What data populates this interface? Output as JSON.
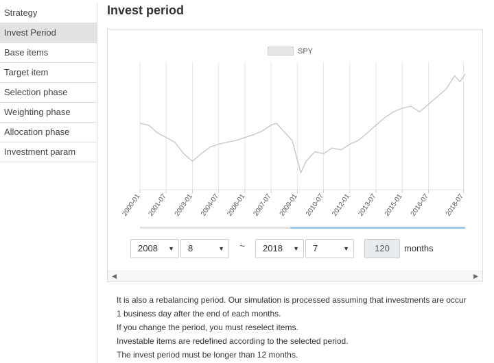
{
  "sidebar": {
    "items": [
      {
        "label": "Strategy",
        "active": false
      },
      {
        "label": "Invest Period",
        "active": true
      },
      {
        "label": "Base items",
        "active": false
      },
      {
        "label": "Target item",
        "active": false
      },
      {
        "label": "Selection phase",
        "active": false
      },
      {
        "label": "Weighting phase",
        "active": false
      },
      {
        "label": "Allocation phase",
        "active": false
      },
      {
        "label": "Investment param",
        "active": false
      }
    ]
  },
  "main": {
    "title": "Invest period",
    "period": {
      "start_year": "2008",
      "start_month": "8",
      "separator": "~",
      "end_year": "2018",
      "end_month": "7",
      "months_value": "120",
      "months_label": "months"
    },
    "notes": [
      "It is also a rebalancing period. Our simulation is processed assuming that investments are occur",
      "1 business day after the end of each months.",
      "If you change the period, you must reselect items.",
      "Investable items are redefined according to the selected period.",
      "The invest period must be longer than 12 months."
    ]
  },
  "chart_data": {
    "type": "line",
    "legend": "top",
    "grid": true,
    "series": [
      {
        "name": "SPY",
        "color": "#c8c8c8",
        "x": [
          2000.0,
          2000.5,
          2001.0,
          2001.5,
          2002.0,
          2002.5,
          2003.0,
          2003.5,
          2004.0,
          2004.5,
          2005.0,
          2005.5,
          2006.0,
          2006.5,
          2007.0,
          2007.5,
          2007.8,
          2008.3,
          2008.7,
          2009.2,
          2009.5,
          2010.0,
          2010.5,
          2011.0,
          2011.5,
          2012.0,
          2012.5,
          2013.0,
          2013.5,
          2014.0,
          2014.5,
          2015.0,
          2015.5,
          2016.0,
          2016.5,
          2017.0,
          2017.5,
          2018.0,
          2018.3,
          2018.6
        ],
        "values": [
          100,
          98,
          90,
          85,
          80,
          68,
          60,
          68,
          75,
          78,
          80,
          82,
          85,
          88,
          92,
          98,
          100,
          90,
          82,
          48,
          60,
          70,
          68,
          74,
          72,
          78,
          82,
          90,
          98,
          106,
          112,
          116,
          118,
          112,
          120,
          128,
          136,
          150,
          144,
          152
        ]
      }
    ],
    "x_ticks": [
      "2000-01",
      "2001-07",
      "2003-01",
      "2004-07",
      "2006-01",
      "2007-07",
      "2009-01",
      "2010-07",
      "2012-01",
      "2013-07",
      "2015-01",
      "2016-07",
      "2018-07"
    ],
    "x_tick_values": [
      2000.0,
      2001.5,
      2003.0,
      2004.5,
      2006.0,
      2007.5,
      2009.0,
      2010.5,
      2012.0,
      2013.5,
      2015.0,
      2016.5,
      2018.5
    ],
    "xlim": [
      2000.0,
      2018.6
    ],
    "ylim": [
      30,
      165
    ],
    "range_selection": [
      2008.6,
      2018.6
    ]
  }
}
